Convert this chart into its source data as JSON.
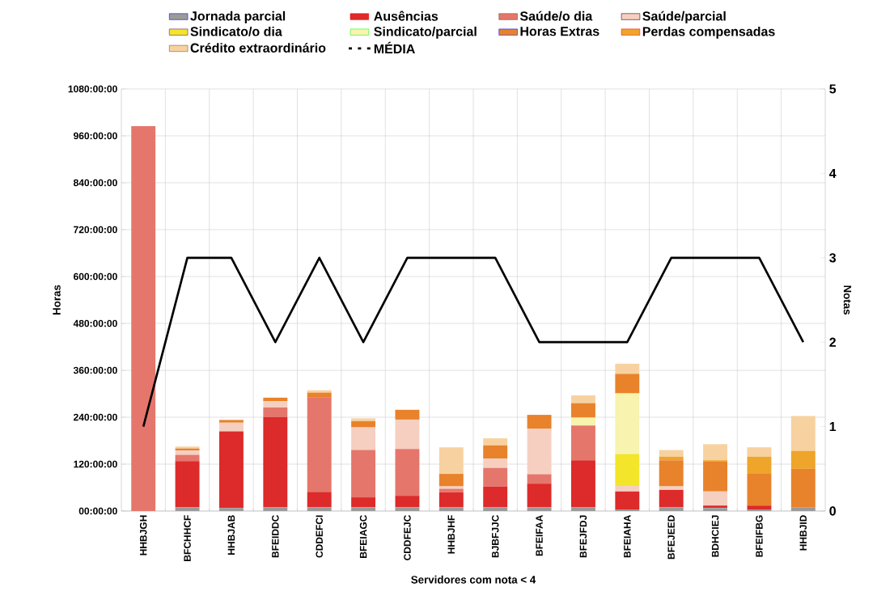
{
  "chart_data": {
    "type": "bar",
    "stacked": true,
    "xlabel": "Servidores com nota < 4",
    "ylabel": "Horas",
    "y2label": "Notas",
    "categories": [
      "HHBJGH",
      "BFCHHCF",
      "HHBJAB",
      "BFEIDDC",
      "CDDEFCI",
      "BFEIAGC",
      "CDDFEJC",
      "HHBJHF",
      "BJBFJJC",
      "BFEIFAA",
      "BFEJFDJ",
      "BFEIAHA",
      "BFEJEED",
      "BDHCIEJ",
      "BFEIFBG",
      "HHBJID"
    ],
    "ylim": [
      0,
      1080
    ],
    "yticks": [
      {
        "value": 0,
        "label": "00:00:00"
      },
      {
        "value": 120,
        "label": "120:00:00"
      },
      {
        "value": 240,
        "label": "240:00:00"
      },
      {
        "value": 360,
        "label": "360:00:00"
      },
      {
        "value": 480,
        "label": "480:00:00"
      },
      {
        "value": 600,
        "label": "600:00:00"
      },
      {
        "value": 720,
        "label": "720:00:00"
      },
      {
        "value": 840,
        "label": "840:00:00"
      },
      {
        "value": 960,
        "label": "960:00:00"
      },
      {
        "value": 1080,
        "label": "1080:00:00"
      }
    ],
    "y2lim": [
      0,
      5
    ],
    "y2ticks": [
      0,
      1,
      2,
      3,
      4,
      5
    ],
    "grid": true,
    "legend": "top",
    "series": [
      {
        "name": "Jornada parcial",
        "color": "#9a9a9a",
        "values": [
          0,
          10,
          8,
          10,
          10,
          10,
          10,
          10,
          10,
          10,
          10,
          4,
          10,
          8,
          4,
          10
        ]
      },
      {
        "name": "Ausências",
        "color": "#dd2a2a",
        "values": [
          0,
          118,
          196,
          230,
          39,
          25,
          29,
          38,
          53,
          60,
          120,
          46,
          44,
          6,
          10,
          0
        ]
      },
      {
        "name": "Saúde/o dia",
        "color": "#e5766c",
        "values": [
          985,
          16,
          0,
          25,
          241,
          121,
          120,
          9,
          47,
          24,
          89,
          0,
          0,
          0,
          0,
          0
        ]
      },
      {
        "name": "Saúde/parcial",
        "color": "#f6cfc0",
        "values": [
          0,
          11,
          22,
          16,
          0,
          58,
          75,
          6,
          24,
          117,
          0,
          14,
          9,
          36,
          0,
          0
        ]
      },
      {
        "name": "Sindicato/o dia",
        "color": "#f3e52a",
        "values": [
          0,
          0,
          0,
          0,
          0,
          0,
          0,
          0,
          0,
          0,
          0,
          82,
          0,
          0,
          0,
          0
        ]
      },
      {
        "name": "Sindicato/parcial",
        "color": "#f8f3ae",
        "values": [
          0,
          0,
          0,
          0,
          0,
          0,
          0,
          0,
          0,
          0,
          20,
          155,
          0,
          0,
          0,
          0
        ]
      },
      {
        "name": "Horas Extras",
        "color": "#e8822b",
        "values": [
          0,
          5,
          7,
          9,
          13,
          16,
          25,
          32,
          34,
          35,
          37,
          50,
          67,
          77,
          81,
          98
        ]
      },
      {
        "name": "Perdas compensadas",
        "color": "#eea52a",
        "values": [
          0,
          0,
          0,
          0,
          0,
          0,
          0,
          0,
          0,
          0,
          0,
          0,
          9,
          3,
          44,
          46
        ]
      },
      {
        "name": "Crédito extraordinário",
        "color": "#f7d2a0",
        "values": [
          0,
          5,
          0,
          0,
          6,
          7,
          0,
          68,
          18,
          0,
          20,
          26,
          17,
          41,
          24,
          89
        ]
      },
      {
        "name": "MÉDIA",
        "type": "line",
        "axis": "y2",
        "color": "#000000",
        "values": [
          1,
          3,
          3,
          2,
          3,
          2,
          3,
          3,
          3,
          2,
          2,
          2,
          3,
          3,
          3,
          2
        ]
      }
    ]
  }
}
